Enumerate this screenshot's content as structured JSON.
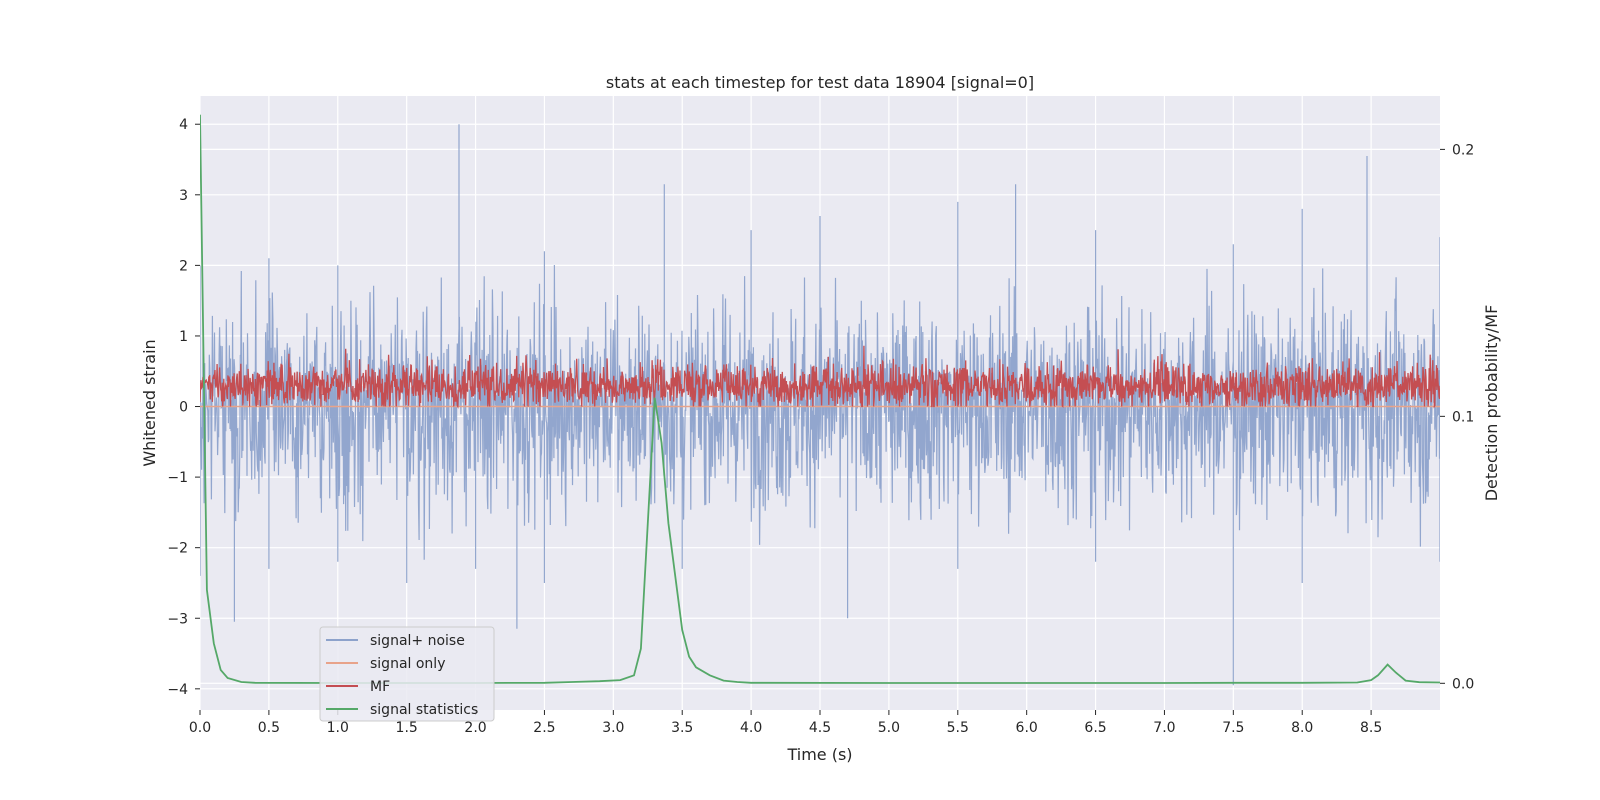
{
  "chart_data": {
    "type": "line",
    "title": "stats at each timestep for test data 18904 [signal=0]",
    "xlabel": "Time (s)",
    "ylabel": "Whitened strain",
    "y2label": "Detection probability/MF",
    "xlim": [
      0,
      9.0
    ],
    "ylim": [
      -4.3,
      4.4
    ],
    "y2lim": [
      -0.01,
      0.22
    ],
    "xticks": [
      0.0,
      0.5,
      1.0,
      1.5,
      2.0,
      2.5,
      3.0,
      3.5,
      4.0,
      4.5,
      5.0,
      5.5,
      6.0,
      6.5,
      7.0,
      7.5,
      8.0,
      8.5
    ],
    "yticks": [
      -4,
      -3,
      -2,
      -1,
      0,
      1,
      2,
      3,
      4
    ],
    "y2ticks": [
      0.0,
      0.1,
      0.2
    ],
    "grid": true,
    "legend_position": "lower-left",
    "colors": {
      "signal_noise": "#8da2cb",
      "signal_only": "#e8a38a",
      "mf": "#c44e52",
      "stats": "#55a868",
      "plot_bg": "#eaeaf2",
      "grid": "#ffffff"
    },
    "series": [
      {
        "name": "signal+ noise",
        "axis": "left",
        "note_type": "dense-noise",
        "upper_envelope": [
          [
            0.0,
            2.0
          ],
          [
            0.5,
            2.1
          ],
          [
            1.0,
            2.0
          ],
          [
            1.88,
            4.0
          ],
          [
            2.5,
            2.2
          ],
          [
            3.37,
            3.15
          ],
          [
            4.0,
            2.5
          ],
          [
            4.5,
            2.7
          ],
          [
            5.5,
            2.9
          ],
          [
            5.92,
            3.15
          ],
          [
            6.5,
            2.5
          ],
          [
            7.5,
            2.3
          ],
          [
            8.0,
            2.8
          ],
          [
            8.47,
            3.55
          ],
          [
            9.0,
            2.4
          ]
        ],
        "lower_envelope": [
          [
            0.0,
            -2.4
          ],
          [
            0.25,
            -3.05
          ],
          [
            0.5,
            -2.3
          ],
          [
            1.0,
            -2.2
          ],
          [
            1.5,
            -2.5
          ],
          [
            2.0,
            -2.3
          ],
          [
            2.3,
            -3.15
          ],
          [
            2.5,
            -2.5
          ],
          [
            3.5,
            -2.3
          ],
          [
            4.7,
            -3.0
          ],
          [
            5.5,
            -2.3
          ],
          [
            6.5,
            -2.2
          ],
          [
            7.5,
            -3.95
          ],
          [
            8.0,
            -2.5
          ],
          [
            9.0,
            -2.2
          ]
        ]
      },
      {
        "name": "signal only",
        "axis": "left",
        "x": [
          0.0,
          9.0
        ],
        "y": [
          0.0,
          0.0
        ]
      },
      {
        "name": "MF",
        "axis": "left",
        "note_type": "dense-noise",
        "mean": 0.28,
        "min": 0.0,
        "max": 0.95
      },
      {
        "name": "signal statistics",
        "axis": "right",
        "x": [
          0.0,
          0.05,
          0.1,
          0.15,
          0.2,
          0.3,
          0.4,
          1.0,
          2.0,
          2.5,
          2.7,
          2.9,
          3.05,
          3.15,
          3.2,
          3.25,
          3.3,
          3.35,
          3.4,
          3.45,
          3.5,
          3.55,
          3.6,
          3.7,
          3.8,
          3.9,
          4.0,
          5.0,
          6.0,
          7.0,
          7.5,
          8.0,
          8.4,
          8.5,
          8.55,
          8.62,
          8.68,
          8.75,
          8.85,
          9.0
        ],
        "y": [
          0.213,
          0.035,
          0.015,
          0.005,
          0.002,
          0.0005,
          0.0002,
          0.0001,
          0.0001,
          0.0002,
          0.0005,
          0.0008,
          0.0012,
          0.003,
          0.013,
          0.06,
          0.107,
          0.09,
          0.06,
          0.04,
          0.02,
          0.01,
          0.006,
          0.003,
          0.001,
          0.0005,
          0.0002,
          0.0001,
          0.0001,
          0.0001,
          0.0002,
          0.0002,
          0.0003,
          0.0012,
          0.003,
          0.007,
          0.004,
          0.001,
          0.0004,
          0.0003
        ]
      }
    ]
  }
}
